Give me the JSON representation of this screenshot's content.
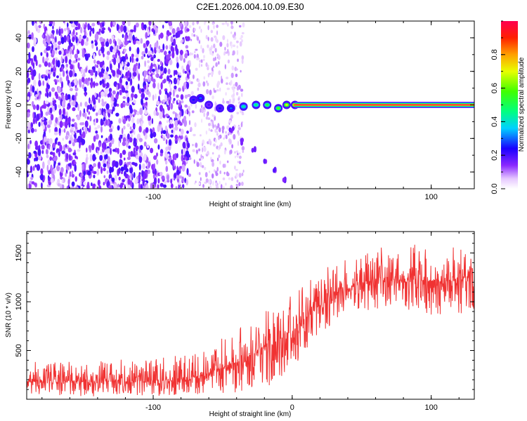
{
  "page_title": "C2E1.2026.004.10.09.E30",
  "chart_data": [
    {
      "type": "heatmap",
      "name": "spectrogram",
      "title": "C2E1.2026.004.10.09.E30",
      "xlabel": "Height of straight line (km)",
      "ylabel": "Frequency (Hz)",
      "xlim": [
        -191,
        131
      ],
      "ylim": [
        -50,
        50
      ],
      "x_ticks": [
        -100,
        0,
        100
      ],
      "x_tick_labels": [
        "-100",
        "",
        "100"
      ],
      "y_ticks": [
        -40,
        -20,
        0,
        20,
        40
      ],
      "y_tick_labels": [
        "-40",
        "-20",
        "0",
        "20",
        "40"
      ],
      "noise_region_x": [
        -191,
        -74
      ],
      "sparse_noise_region_x": [
        -74,
        -35
      ],
      "echo_trace": [
        {
          "x": -71,
          "f": 3,
          "amp": 0.25
        },
        {
          "x": -66,
          "f": 4,
          "amp": 0.3
        },
        {
          "x": -60,
          "f": 0,
          "amp": 0.2
        },
        {
          "x": -52,
          "f": -2,
          "amp": 0.25
        },
        {
          "x": -44,
          "f": -2,
          "amp": 0.3
        },
        {
          "x": -35,
          "f": -1,
          "amp": 0.45
        },
        {
          "x": -26,
          "f": 0,
          "amp": 0.5
        },
        {
          "x": -18,
          "f": 0,
          "amp": 0.55
        },
        {
          "x": -10,
          "f": -2,
          "amp": 0.6
        },
        {
          "x": -4,
          "f": 0,
          "amp": 0.7
        },
        {
          "x": 2,
          "f": 0,
          "amp": 0.85
        }
      ],
      "tail_trace": [
        {
          "x": -44,
          "f": -15
        },
        {
          "x": -36,
          "f": -22
        },
        {
          "x": -28,
          "f": -27
        },
        {
          "x": -20,
          "f": -33
        },
        {
          "x": -12,
          "f": -39
        },
        {
          "x": -5,
          "f": -45
        }
      ],
      "constant_line": {
        "x_start": 2,
        "x_end": 131,
        "f": 0,
        "amp": 1.0
      },
      "colorbar": {
        "label": "Normalized spectral amplitude",
        "range": [
          0,
          1
        ],
        "ticks": [
          0.0,
          0.2,
          0.4,
          0.6,
          0.8
        ],
        "tick_labels": [
          "0.0",
          "0.2",
          "0.4",
          "0.6",
          "0.8"
        ]
      }
    },
    {
      "type": "line",
      "name": "snr",
      "xlabel": "Height of straight line (km)",
      "ylabel": "SNR (10 * v/v)",
      "xlim": [
        -191,
        131
      ],
      "ylim": [
        0,
        1720
      ],
      "x_ticks": [
        -100,
        0,
        100
      ],
      "x_tick_labels": [
        "-100",
        "0",
        "100"
      ],
      "y_ticks": [
        500,
        1000,
        1500
      ],
      "y_tick_labels": [
        "500",
        "1000",
        "1500"
      ],
      "series": [
        {
          "name": "SNR",
          "color": "#f03232",
          "envelope": [
            {
              "x": -191,
              "min": 30,
              "mean": 180,
              "max": 380
            },
            {
              "x": -150,
              "min": 30,
              "mean": 180,
              "max": 400
            },
            {
              "x": -100,
              "min": 30,
              "mean": 185,
              "max": 420
            },
            {
              "x": -75,
              "min": 40,
              "mean": 200,
              "max": 470
            },
            {
              "x": -60,
              "min": 60,
              "mean": 280,
              "max": 600
            },
            {
              "x": -45,
              "min": 60,
              "mean": 340,
              "max": 720
            },
            {
              "x": -30,
              "min": 80,
              "mean": 450,
              "max": 850
            },
            {
              "x": -15,
              "min": 150,
              "mean": 560,
              "max": 950
            },
            {
              "x": 0,
              "min": 300,
              "mean": 700,
              "max": 1100
            },
            {
              "x": 15,
              "min": 600,
              "mean": 900,
              "max": 1250
            },
            {
              "x": 30,
              "min": 800,
              "mean": 1080,
              "max": 1400
            },
            {
              "x": 50,
              "min": 900,
              "mean": 1200,
              "max": 1500
            },
            {
              "x": 70,
              "min": 950,
              "mean": 1260,
              "max": 1620
            },
            {
              "x": 90,
              "min": 880,
              "mean": 1220,
              "max": 1600
            },
            {
              "x": 110,
              "min": 850,
              "mean": 1210,
              "max": 1570
            },
            {
              "x": 131,
              "min": 900,
              "mean": 1250,
              "max": 1560
            }
          ]
        }
      ]
    }
  ]
}
